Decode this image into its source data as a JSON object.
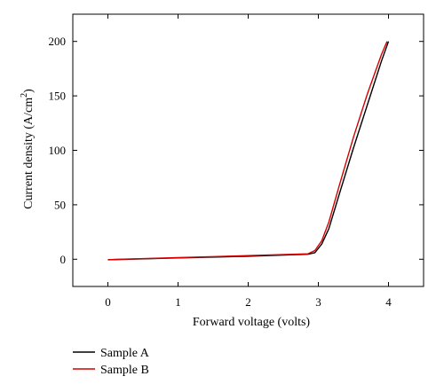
{
  "chart_data": {
    "type": "line",
    "title": "",
    "xlabel": "Forward voltage (volts)",
    "ylabel_main": "Current density (A/cm",
    "ylabel_sup": "2",
    "ylabel_close": ")",
    "xlim": [
      -0.5,
      4.5
    ],
    "ylim": [
      -25,
      225
    ],
    "x_ticks": [
      0,
      1,
      2,
      3,
      4
    ],
    "y_ticks": [
      0,
      50,
      100,
      150,
      200
    ],
    "grid": false,
    "legend_position": "bottom-left",
    "series": [
      {
        "name": "Sample A",
        "color": "#000000",
        "x": [
          0,
          1,
          2,
          2.85,
          2.95,
          3.05,
          3.15,
          3.3,
          3.5,
          3.7,
          3.9,
          4.0
        ],
        "y": [
          -0.5,
          1.2,
          2.8,
          4.6,
          6,
          14,
          28,
          60,
          102,
          142,
          182,
          200
        ]
      },
      {
        "name": "Sample B",
        "color": "#d40000",
        "x": [
          0,
          1,
          2,
          2.85,
          2.95,
          3.05,
          3.15,
          3.3,
          3.5,
          3.7,
          3.9,
          3.98
        ],
        "y": [
          -0.3,
          1.5,
          3.3,
          5.0,
          8,
          17,
          34,
          68,
          112,
          152,
          188,
          200
        ]
      }
    ]
  }
}
